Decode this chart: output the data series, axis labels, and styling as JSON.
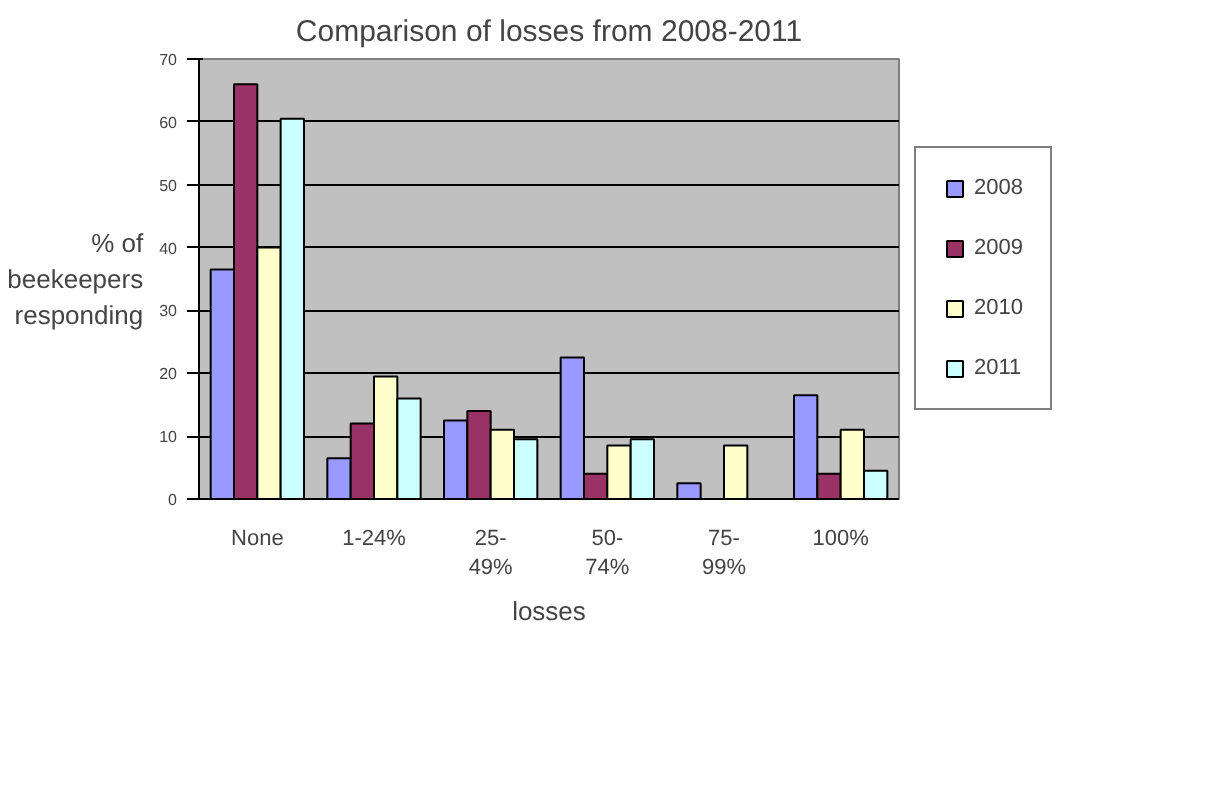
{
  "chart_data": {
    "type": "bar",
    "title": "Comparison of losses from 2008-2011",
    "xlabel": "losses",
    "ylabel": "% of\nbeekeepers\nresponding",
    "categories": [
      "None",
      "1-24%",
      "25-\n49%",
      "50-\n74%",
      "75-\n99%",
      "100%"
    ],
    "series": [
      {
        "name": "2008",
        "color": "#9999ff",
        "values": [
          36.5,
          6.5,
          12.5,
          22.5,
          2.5,
          16.5
        ]
      },
      {
        "name": "2009",
        "color": "#993366",
        "values": [
          66,
          12,
          14,
          4,
          0,
          4
        ]
      },
      {
        "name": "2010",
        "color": "#ffffcc",
        "values": [
          40,
          19.5,
          11,
          8.5,
          8.5,
          11
        ]
      },
      {
        "name": "2011",
        "color": "#ccffff",
        "values": [
          60.5,
          16,
          9.5,
          9.5,
          0,
          4.5
        ]
      }
    ],
    "ylim": [
      0,
      70
    ],
    "yticks": [
      0,
      10,
      20,
      30,
      40,
      50,
      60,
      70
    ],
    "grid": "y",
    "legend": "right"
  }
}
